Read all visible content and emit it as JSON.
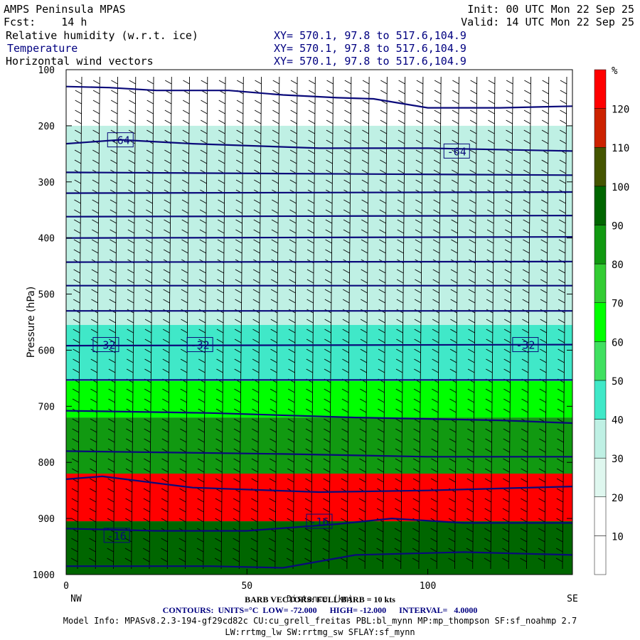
{
  "header": {
    "model": "AMPS Peninsula MPAS",
    "fcst_label": "Fcst:",
    "fcst_value": "14 h",
    "init": "Init: 00 UTC Mon 22 Sep 25",
    "valid": "Valid: 14 UTC Mon 22 Sep 25",
    "fields": [
      {
        "name": "Relative humidity (w.r.t. ice)",
        "xy": "XY= 570.1, 97.8 to 517.6,104.9"
      },
      {
        "name": "Temperature",
        "xy": "XY= 570.1, 97.8 to 517.6,104.9"
      },
      {
        "name": "Horizontal wind vectors",
        "xy": "XY= 570.1, 97.8 to 517.6,104.9"
      }
    ]
  },
  "colors": {
    "contour": "#0a0a7a",
    "barb": "#000000",
    "rh_scale": [
      "#ffffff",
      "#ffffff",
      "#dff7ef",
      "#bff0e4",
      "#40e8c8",
      "#40e060",
      "#00ff00",
      "#33cc33",
      "#119911",
      "#006600",
      "#445500",
      "#cc2200",
      "#ff0000"
    ]
  },
  "chart_data": {
    "type": "heatmap",
    "title": "Relative humidity (w.r.t. ice)",
    "xlabel": "Distance (km)",
    "ylabel": "Pressure (hPa)",
    "xlim": [
      0,
      140
    ],
    "ylim": [
      1000,
      100
    ],
    "x_ticks": [
      0,
      50,
      100
    ],
    "y_ticks": [
      100,
      200,
      300,
      400,
      500,
      600,
      700,
      800,
      900,
      1000
    ],
    "x_end_labels": {
      "left": "NW",
      "right": "SE"
    },
    "colorbar": {
      "unit": "%",
      "levels": [
        10,
        20,
        30,
        40,
        50,
        60,
        70,
        80,
        90,
        100,
        110,
        120
      ]
    },
    "rh_layers": [
      {
        "p_top": 100,
        "p_bottom": 200,
        "rh": 10
      },
      {
        "p_top": 200,
        "p_bottom": 555,
        "rh": 35
      },
      {
        "p_top": 555,
        "p_bottom": 655,
        "rh": 45
      },
      {
        "p_top": 655,
        "p_bottom": 720,
        "rh": 65
      },
      {
        "p_top": 720,
        "p_bottom": 820,
        "rh": 85
      },
      {
        "p_top": 820,
        "p_bottom": 905,
        "rh": 125
      },
      {
        "p_top": 905,
        "p_bottom": 1000,
        "rh": 90
      }
    ],
    "temperature_contours": {
      "units": "°C",
      "low": "-72.000",
      "high": "-12.000",
      "interval": "4.0000",
      "labeled": [
        {
          "value": -64,
          "labels": [
            {
              "x": 15,
              "p": 225
            },
            {
              "x": 108,
              "p": 245
            }
          ]
        },
        {
          "value": -32,
          "labels": [
            {
              "x": 11,
              "p": 590
            },
            {
              "x": 37,
              "p": 590
            },
            {
              "x": 127,
              "p": 590
            }
          ]
        },
        {
          "value": -16,
          "labels": [
            {
              "x": 14,
              "p": 930
            },
            {
              "x": 70,
              "p": 905
            }
          ]
        }
      ],
      "lines": [
        [
          [
            0,
            130
          ],
          [
            12,
            132
          ],
          [
            25,
            137
          ],
          [
            45,
            137
          ],
          [
            60,
            145
          ],
          [
            75,
            150
          ],
          [
            85,
            152
          ],
          [
            100,
            168
          ],
          [
            120,
            168
          ],
          [
            140,
            165
          ]
        ],
        [
          [
            0,
            232
          ],
          [
            15,
            225
          ],
          [
            35,
            232
          ],
          [
            70,
            240
          ],
          [
            100,
            240
          ],
          [
            140,
            245
          ]
        ],
        [
          [
            0,
            283
          ],
          [
            140,
            288
          ]
        ],
        [
          [
            0,
            320
          ],
          [
            140,
            318
          ]
        ],
        [
          [
            0,
            362
          ],
          [
            140,
            360
          ]
        ],
        [
          [
            0,
            400
          ],
          [
            140,
            398
          ]
        ],
        [
          [
            0,
            443
          ],
          [
            140,
            442
          ]
        ],
        [
          [
            0,
            485
          ],
          [
            140,
            485
          ]
        ],
        [
          [
            0,
            530
          ],
          [
            140,
            530
          ]
        ],
        [
          [
            0,
            592
          ],
          [
            140,
            590
          ]
        ],
        [
          [
            0,
            653
          ],
          [
            140,
            653
          ]
        ],
        [
          [
            0,
            708
          ],
          [
            40,
            712
          ],
          [
            80,
            720
          ],
          [
            120,
            725
          ],
          [
            140,
            730
          ]
        ],
        [
          [
            0,
            780
          ],
          [
            60,
            785
          ],
          [
            100,
            790
          ],
          [
            140,
            790
          ]
        ],
        [
          [
            0,
            830
          ],
          [
            10,
            825
          ],
          [
            35,
            845
          ],
          [
            70,
            853
          ],
          [
            100,
            850
          ],
          [
            140,
            843
          ]
        ],
        [
          [
            0,
            918
          ],
          [
            25,
            922
          ],
          [
            50,
            922
          ],
          [
            75,
            910
          ],
          [
            90,
            900
          ],
          [
            110,
            908
          ],
          [
            140,
            908
          ]
        ],
        [
          [
            0,
            985
          ],
          [
            40,
            985
          ],
          [
            60,
            988
          ],
          [
            80,
            965
          ],
          [
            110,
            960
          ],
          [
            140,
            965
          ]
        ]
      ]
    }
  },
  "footer": {
    "xlabel": "Distance (km)",
    "barb_note": "BARB VECTORS: FULL BARB = 10 kts",
    "contours_line": "CONTOURS:  UNITS=°C  LOW= -72.000      HIGH= -12.000      INTERVAL=   4.0000",
    "model_info": "Model Info: MPASv8.2.3-194-gf29cd82c CU:cu_grell_freitas PBL:bl_mynn MP:mp_thompson SF:sf_noahmp 2.7",
    "physics": "LW:rrtmg_lw SW:rrtmg_sw SFLAY:sf_mynn"
  }
}
